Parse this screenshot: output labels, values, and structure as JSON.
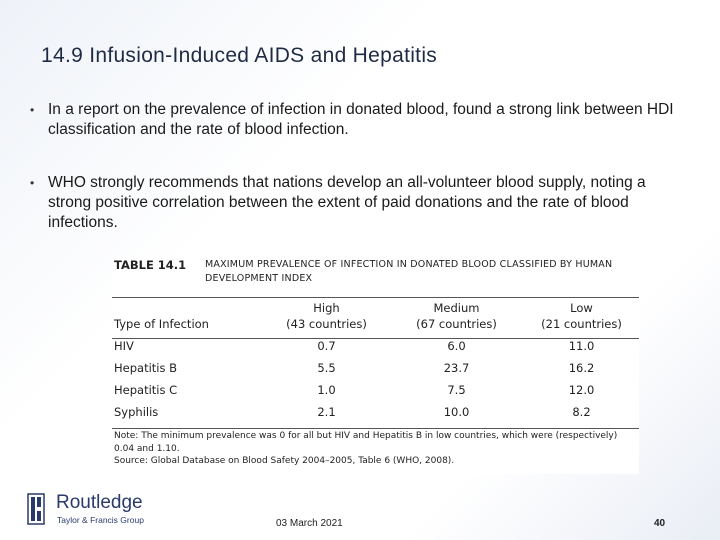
{
  "slide": {
    "title": "14.9  Infusion-Induced AIDS and Hepatitis",
    "bullets": [
      "In a report on the prevalence of infection in donated blood, found a strong link between HDI classification and the rate of blood infection.",
      "WHO strongly recommends that nations develop an all-volunteer blood supply, noting a strong positive correlation between the extent of paid donations and the rate of blood infections."
    ]
  },
  "table": {
    "label": "TABLE 14.1",
    "caption": "MAXIMUM PREVALENCE OF INFECTION IN DONATED BLOOD CLASSIFIED BY HUMAN DEVELOPMENT INDEX",
    "columns": [
      {
        "name": "",
        "sub": "Type of Infection"
      },
      {
        "name": "High",
        "sub": "(43 countries)"
      },
      {
        "name": "Medium",
        "sub": "(67 countries)"
      },
      {
        "name": "Low",
        "sub": "(21 countries)"
      }
    ],
    "rows": [
      [
        "HIV",
        "0.7",
        "6.0",
        "11.0"
      ],
      [
        "Hepatitis B",
        "5.5",
        "23.7",
        "16.2"
      ],
      [
        "Hepatitis C",
        "1.0",
        "7.5",
        "12.0"
      ],
      [
        "Syphilis",
        "2.1",
        "10.0",
        "8.2"
      ]
    ],
    "note": "Note: The minimum prevalence was 0 for all but HIV and Hepatitis B in low countries, which were (respectively) 0.04 and 1.10.",
    "source": "Source: Global Database on Blood Safety 2004–2005, Table 6 (WHO, 2008)."
  },
  "footer": {
    "logo_name": "Routledge",
    "logo_sub": "Taylor & Francis Group",
    "date": "03 March 2021",
    "page": "40"
  }
}
